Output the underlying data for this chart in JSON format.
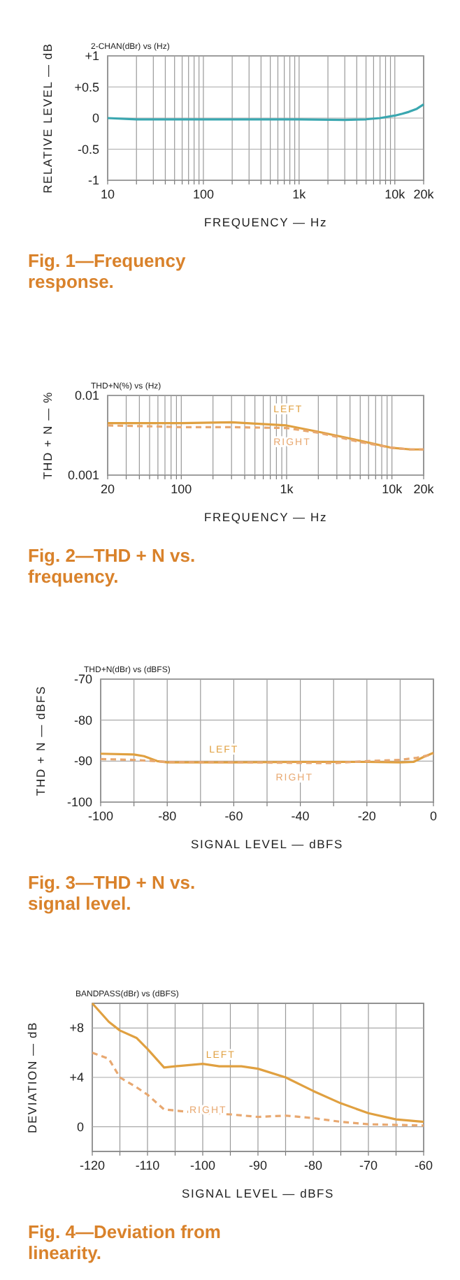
{
  "chart_data": [
    {
      "type": "line",
      "title": "Fig. 1—Frequency response.",
      "subtitle": "2-CHAN(dBr) vs (Hz)",
      "xlabel": "FREQUENCY — Hz",
      "ylabel": "RELATIVE LEVEL — dB",
      "log": "x",
      "grid": true,
      "xlim": [
        10,
        20000
      ],
      "ylim": [
        -1,
        1
      ],
      "xticks": [
        10,
        {
          "value": 20,
          "label": null
        },
        {
          "value": 30,
          "label": null
        },
        {
          "value": 40,
          "label": null
        },
        {
          "value": 50,
          "label": null
        },
        {
          "value": 60,
          "label": null
        },
        {
          "value": 70,
          "label": null
        },
        {
          "value": 80,
          "label": null
        },
        {
          "value": 90,
          "label": null
        },
        100,
        {
          "value": 200,
          "label": null
        },
        {
          "value": 300,
          "label": null
        },
        {
          "value": 400,
          "label": null
        },
        {
          "value": 500,
          "label": null
        },
        {
          "value": 600,
          "label": null
        },
        {
          "value": 700,
          "label": null
        },
        {
          "value": 800,
          "label": null
        },
        {
          "value": 900,
          "label": null
        },
        {
          "value": 1000,
          "label": "1k"
        },
        {
          "value": 2000,
          "label": null
        },
        {
          "value": 3000,
          "label": null
        },
        {
          "value": 4000,
          "label": null
        },
        {
          "value": 5000,
          "label": null
        },
        {
          "value": 6000,
          "label": null
        },
        {
          "value": 7000,
          "label": null
        },
        {
          "value": 8000,
          "label": null
        },
        {
          "value": 9000,
          "label": null
        },
        {
          "value": 10000,
          "label": "10k"
        },
        {
          "value": 20000,
          "label": "20k"
        }
      ],
      "yticks": [
        {
          "value": 1,
          "label": "+1"
        },
        {
          "value": 0.5,
          "label": "+0.5"
        },
        0,
        -0.5,
        -1
      ],
      "series": [
        {
          "color": "#3aa7b0",
          "x": [
            10,
            20,
            50,
            100,
            300,
            1000,
            3000,
            5000,
            7000,
            10000,
            12000,
            14000,
            17000,
            20000
          ],
          "values": [
            0,
            -0.02,
            -0.02,
            -0.02,
            -0.02,
            -0.02,
            -0.03,
            -0.02,
            0,
            0.04,
            0.07,
            0.1,
            0.15,
            0.22
          ]
        }
      ]
    },
    {
      "type": "line",
      "title": "Fig. 2—THD + N vs. frequency.",
      "subtitle": "THD+N(%) vs (Hz)",
      "xlabel": "FREQUENCY — Hz",
      "ylabel": "THD + N — %",
      "log": "xy",
      "grid": true,
      "xlim": [
        20,
        20000
      ],
      "ylim": [
        0.001,
        0.01
      ],
      "xticks": [
        20,
        {
          "value": 30,
          "label": null
        },
        {
          "value": 40,
          "label": null
        },
        {
          "value": 50,
          "label": null
        },
        {
          "value": 60,
          "label": null
        },
        {
          "value": 70,
          "label": null
        },
        {
          "value": 80,
          "label": null
        },
        {
          "value": 90,
          "label": null
        },
        100,
        {
          "value": 200,
          "label": null
        },
        {
          "value": 300,
          "label": null
        },
        {
          "value": 400,
          "label": null
        },
        {
          "value": 500,
          "label": null
        },
        {
          "value": 600,
          "label": null
        },
        {
          "value": 700,
          "label": null
        },
        {
          "value": 800,
          "label": null
        },
        {
          "value": 900,
          "label": null
        },
        {
          "value": 1000,
          "label": "1k"
        },
        {
          "value": 2000,
          "label": null
        },
        {
          "value": 3000,
          "label": null
        },
        {
          "value": 4000,
          "label": null
        },
        {
          "value": 5000,
          "label": null
        },
        {
          "value": 6000,
          "label": null
        },
        {
          "value": 7000,
          "label": null
        },
        {
          "value": 8000,
          "label": null
        },
        {
          "value": 9000,
          "label": null
        },
        {
          "value": 10000,
          "label": "10k"
        },
        {
          "value": 20000,
          "label": "20k"
        }
      ],
      "yticks": [
        0.01,
        0.001
      ],
      "series": [
        {
          "name": "LEFT",
          "color": "#e0a040",
          "line_style": "solid",
          "x": [
            20,
            50,
            100,
            300,
            1000,
            2000,
            5000,
            10000,
            15000,
            20000
          ],
          "values": [
            0.0045,
            0.0045,
            0.0045,
            0.0046,
            0.0042,
            0.0035,
            0.0027,
            0.0022,
            0.0021,
            0.0021
          ]
        },
        {
          "name": "RIGHT",
          "color": "#e8a870",
          "line_style": "dashed",
          "x": [
            20,
            50,
            100,
            300,
            1000,
            2000,
            5000,
            10000,
            15000,
            20000
          ],
          "values": [
            0.0042,
            0.0041,
            0.004,
            0.004,
            0.0039,
            0.0034,
            0.0026,
            0.0022,
            0.0021,
            0.0021
          ]
        }
      ]
    },
    {
      "type": "line",
      "title": "Fig. 3—THD + N vs. signal level.",
      "subtitle": "THD+N(dBr) vs (dBFS)",
      "xlabel": "SIGNAL LEVEL — dBFS",
      "ylabel": "THD + N — dBFS",
      "grid": true,
      "xlim": [
        -100,
        0
      ],
      "ylim": [
        -100,
        -70
      ],
      "xticks": [
        -100,
        {
          "value": -90,
          "label": null
        },
        -80,
        {
          "value": -70,
          "label": null
        },
        -60,
        {
          "value": -50,
          "label": null
        },
        -40,
        {
          "value": -30,
          "label": null
        },
        -20,
        {
          "value": -10,
          "label": null
        },
        0
      ],
      "yticks": [
        -70,
        -80,
        -90,
        -100
      ],
      "series": [
        {
          "name": "LEFT",
          "color": "#e0a040",
          "line_style": "solid",
          "x": [
            -100,
            -90,
            -87,
            -83,
            -80,
            -60,
            -40,
            -20,
            -10,
            -6,
            -3,
            0
          ],
          "values": [
            -88.2,
            -88.4,
            -88.8,
            -90,
            -90.3,
            -90.3,
            -90.2,
            -90.2,
            -90.3,
            -90.2,
            -89,
            -88
          ]
        },
        {
          "name": "RIGHT",
          "color": "#e8a870",
          "line_style": "dashed",
          "x": [
            -100,
            -90,
            -80,
            -60,
            -30,
            -20,
            -10,
            -5,
            0
          ],
          "values": [
            -89.5,
            -89.7,
            -90.2,
            -90.3,
            -90.5,
            -90,
            -89.7,
            -89.2,
            -88.3
          ]
        }
      ]
    },
    {
      "type": "line",
      "title": "Fig. 4—Deviation from linearity.",
      "subtitle": "BANDPASS(dBr) vs (dBFS)",
      "xlabel": "SIGNAL LEVEL — dBFS",
      "ylabel": "DEVIATION — dB",
      "grid": true,
      "xlim": [
        -120,
        -60
      ],
      "ylim": [
        -2,
        10
      ],
      "xticks": [
        -120,
        {
          "value": -115,
          "label": null
        },
        -110,
        {
          "value": -105,
          "label": null
        },
        -100,
        {
          "value": -95,
          "label": null
        },
        -90,
        {
          "value": -85,
          "label": null
        },
        -80,
        {
          "value": -75,
          "label": null
        },
        -70,
        {
          "value": -65,
          "label": null
        },
        -60
      ],
      "yticks": [
        0,
        {
          "value": 4,
          "label": "+4"
        },
        {
          "value": 8,
          "label": "+8"
        }
      ],
      "series": [
        {
          "name": "LEFT",
          "color": "#e0a040",
          "line_style": "solid",
          "x": [
            -120,
            -117,
            -115,
            -112,
            -110,
            -107,
            -105,
            -100,
            -97,
            -93,
            -90,
            -85,
            -80,
            -75,
            -70,
            -65,
            -60
          ],
          "values": [
            10,
            8.5,
            7.8,
            7.2,
            6.3,
            4.8,
            4.9,
            5.1,
            4.9,
            4.9,
            4.7,
            4,
            2.9,
            1.9,
            1.1,
            0.6,
            0.4
          ]
        },
        {
          "name": "RIGHT",
          "color": "#e8a870",
          "line_style": "dashed",
          "x": [
            -120,
            -117,
            -115,
            -112,
            -110,
            -107,
            -100,
            -95,
            -90,
            -85,
            -80,
            -75,
            -70,
            -60
          ],
          "values": [
            6,
            5.5,
            4,
            3.2,
            2.6,
            1.4,
            1.1,
            1,
            0.8,
            0.9,
            0.7,
            0.4,
            0.2,
            0.1
          ]
        }
      ]
    }
  ]
}
